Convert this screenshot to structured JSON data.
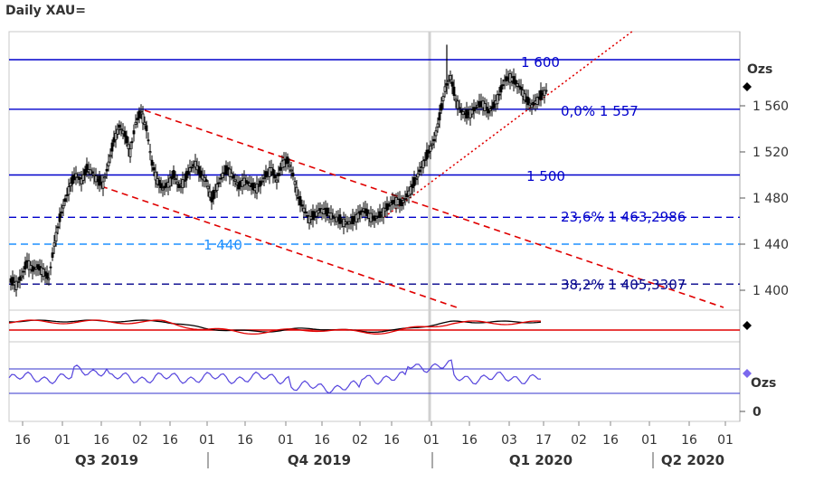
{
  "chart_data": {
    "type": "candlestick",
    "title": "Daily XAU=",
    "unit_label": "Ozs",
    "ylim": [
      1385,
      1620
    ],
    "y_ticks": [
      "1 400",
      "1 440",
      "1 480",
      "1 520",
      "1 560"
    ],
    "x_tick_labels": [
      "16",
      "01",
      "16",
      "02",
      "16",
      "01",
      "16",
      "01",
      "16",
      "02",
      "16",
      "01",
      "16",
      "03",
      "17",
      "02",
      "16",
      "01",
      "16",
      "01"
    ],
    "quarters": [
      "Q3 2019",
      "Q4 2019",
      "Q1 2020",
      "Q2 2020"
    ],
    "horizontal_levels": [
      {
        "value": 1600,
        "label": "1 600",
        "style": "solid",
        "color": "#0000cc"
      },
      {
        "value": 1557,
        "label": "0,0% 1 557",
        "style": "solid",
        "color": "#0000cc"
      },
      {
        "value": 1500,
        "label": "1 500",
        "style": "solid",
        "color": "#0000cc"
      },
      {
        "value": 1463.2986,
        "label": "23,6% 1 463,2986",
        "style": "dashed",
        "color": "#0000cc"
      },
      {
        "value": 1440,
        "label": "1 440",
        "style": "dashed",
        "color": "#1e90ff"
      },
      {
        "value": 1405.3307,
        "label": "38,2% 1 405,3307",
        "style": "dashed",
        "color": "#00008b"
      }
    ],
    "price_path": [
      [
        0,
        1408
      ],
      [
        3,
        1405
      ],
      [
        6,
        1412
      ],
      [
        9,
        1425
      ],
      [
        12,
        1418
      ],
      [
        15,
        1420
      ],
      [
        18,
        1416
      ],
      [
        21,
        1410
      ],
      [
        24,
        1440
      ],
      [
        27,
        1462
      ],
      [
        30,
        1478
      ],
      [
        33,
        1492
      ],
      [
        36,
        1500
      ],
      [
        39,
        1495
      ],
      [
        42,
        1505
      ],
      [
        45,
        1502
      ],
      [
        48,
        1495
      ],
      [
        51,
        1492
      ],
      [
        54,
        1510
      ],
      [
        57,
        1530
      ],
      [
        60,
        1542
      ],
      [
        63,
        1535
      ],
      [
        66,
        1520
      ],
      [
        69,
        1545
      ],
      [
        72,
        1555
      ],
      [
        75,
        1540
      ],
      [
        78,
        1510
      ],
      [
        81,
        1495
      ],
      [
        84,
        1488
      ],
      [
        87,
        1492
      ],
      [
        90,
        1500
      ],
      [
        93,
        1490
      ],
      [
        96,
        1495
      ],
      [
        99,
        1505
      ],
      [
        102,
        1510
      ],
      [
        105,
        1500
      ],
      [
        108,
        1495
      ],
      [
        111,
        1478
      ],
      [
        114,
        1490
      ],
      [
        117,
        1500
      ],
      [
        120,
        1505
      ],
      [
        123,
        1498
      ],
      [
        126,
        1490
      ],
      [
        129,
        1495
      ],
      [
        132,
        1492
      ],
      [
        135,
        1488
      ],
      [
        138,
        1492
      ],
      [
        141,
        1500
      ],
      [
        144,
        1505
      ],
      [
        147,
        1495
      ],
      [
        150,
        1510
      ],
      [
        153,
        1512
      ],
      [
        156,
        1500
      ],
      [
        159,
        1480
      ],
      [
        162,
        1470
      ],
      [
        165,
        1462
      ],
      [
        168,
        1465
      ],
      [
        171,
        1470
      ],
      [
        174,
        1468
      ],
      [
        177,
        1465
      ],
      [
        180,
        1462
      ],
      [
        183,
        1460
      ],
      [
        186,
        1458
      ],
      [
        189,
        1460
      ],
      [
        192,
        1465
      ],
      [
        195,
        1470
      ],
      [
        198,
        1465
      ],
      [
        201,
        1462
      ],
      [
        204,
        1465
      ],
      [
        207,
        1470
      ],
      [
        210,
        1475
      ],
      [
        213,
        1478
      ],
      [
        216,
        1475
      ],
      [
        219,
        1482
      ],
      [
        222,
        1490
      ],
      [
        225,
        1500
      ],
      [
        228,
        1510
      ],
      [
        231,
        1520
      ],
      [
        234,
        1530
      ],
      [
        237,
        1550
      ],
      [
        240,
        1575
      ],
      [
        243,
        1585
      ],
      [
        246,
        1565
      ],
      [
        249,
        1555
      ],
      [
        252,
        1552
      ],
      [
        255,
        1555
      ],
      [
        258,
        1560
      ],
      [
        261,
        1562
      ],
      [
        264,
        1555
      ],
      [
        267,
        1560
      ],
      [
        270,
        1570
      ],
      [
        273,
        1582
      ],
      [
        276,
        1585
      ],
      [
        279,
        1580
      ],
      [
        282,
        1575
      ],
      [
        285,
        1565
      ],
      [
        288,
        1560
      ],
      [
        291,
        1565
      ],
      [
        294,
        1570
      ],
      [
        297,
        1575
      ]
    ],
    "spike_high": {
      "x": 241,
      "value": 1613
    },
    "macd_note": "red and black lines",
    "rsi_note": "blue line"
  }
}
